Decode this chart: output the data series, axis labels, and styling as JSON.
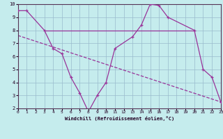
{
  "xlabel": "Windchill (Refroidissement éolien,°C)",
  "bg_color": "#c5eced",
  "line_color": "#993399",
  "grid_color": "#99bbcc",
  "xlim": [
    0,
    23
  ],
  "ylim": [
    2,
    10
  ],
  "yticks": [
    2,
    3,
    4,
    5,
    6,
    7,
    8,
    9,
    10
  ],
  "xticks": [
    0,
    1,
    2,
    3,
    4,
    5,
    6,
    7,
    8,
    9,
    10,
    11,
    12,
    13,
    14,
    15,
    16,
    17,
    18,
    19,
    20,
    21,
    22,
    23
  ],
  "curve1_x": [
    0,
    1,
    3,
    4,
    5,
    6,
    7,
    8,
    9,
    10,
    11,
    13,
    14,
    15,
    16,
    17,
    20,
    21,
    22,
    23
  ],
  "curve1_y": [
    9.5,
    9.5,
    8.0,
    6.6,
    6.2,
    4.4,
    3.2,
    1.75,
    3.0,
    4.0,
    6.6,
    7.5,
    8.4,
    10.0,
    9.9,
    9.0,
    8.0,
    5.0,
    4.4,
    2.5
  ],
  "curve2_x": [
    3,
    20
  ],
  "curve2_y": [
    8.0,
    8.0
  ],
  "curve3_x": [
    0,
    23
  ],
  "curve3_y": [
    7.6,
    2.5
  ]
}
